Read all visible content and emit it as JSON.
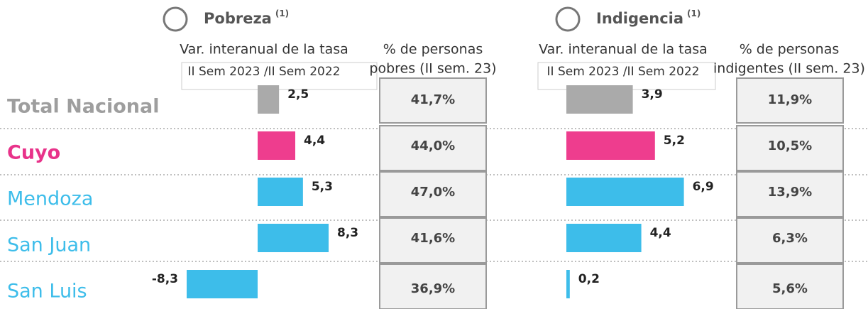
{
  "chart_data": [
    {
      "type": "bar",
      "orientation": "horizontal",
      "title": "Pobreza",
      "title_note": "(1)",
      "subtitle": [
        "Var. interanual de la tasa",
        "II Sem 2023 /II Sem 2022"
      ],
      "categories": [
        "Total Nacional",
        "Cuyo",
        "Mendoza",
        "San Juan",
        "San Luis"
      ],
      "category_colors": [
        "#9e9e9e",
        "#e8338a",
        "#3dbdea",
        "#3dbdea",
        "#3dbdea"
      ],
      "colors": [
        "#aaaaaa",
        "#ee3d8e",
        "#3dbdea",
        "#3dbdea",
        "#3dbdea"
      ],
      "values": [
        2.5,
        4.4,
        5.3,
        8.3,
        -8.3
      ],
      "value_labels": [
        "2,5",
        "4,4",
        "5,3",
        "8,3",
        "-8,3"
      ],
      "xlim": [
        -8.3,
        8.3
      ],
      "table": {
        "header": [
          "% de personas",
          "pobres (II sem. 23)"
        ],
        "values": [
          41.7,
          44.0,
          47.0,
          41.6,
          36.9
        ],
        "value_labels": [
          "41,7%",
          "44,0%",
          "47,0%",
          "41,6%",
          "36,9%"
        ]
      }
    },
    {
      "type": "bar",
      "orientation": "horizontal",
      "title": "Indigencia",
      "title_note": "(1)",
      "subtitle": [
        "Var. interanual de la tasa",
        "II Sem 2023 /II Sem 2022"
      ],
      "colors": [
        "#aaaaaa",
        "#ee3d8e",
        "#3dbdea",
        "#3dbdea",
        "#3dbdea"
      ],
      "values": [
        3.9,
        5.2,
        6.9,
        4.4,
        0.2
      ],
      "value_labels": [
        "3,9",
        "5,2",
        "6,9",
        "4,4",
        "0,2"
      ],
      "xlim": [
        0,
        8
      ],
      "table": {
        "header": [
          "% de personas",
          "indigentes (II sem. 23)"
        ],
        "values": [
          11.9,
          10.5,
          13.9,
          6.3,
          5.6
        ],
        "value_labels": [
          "11,9%",
          "10,5%",
          "13,9%",
          "6,3%",
          "5,6%"
        ]
      }
    }
  ]
}
